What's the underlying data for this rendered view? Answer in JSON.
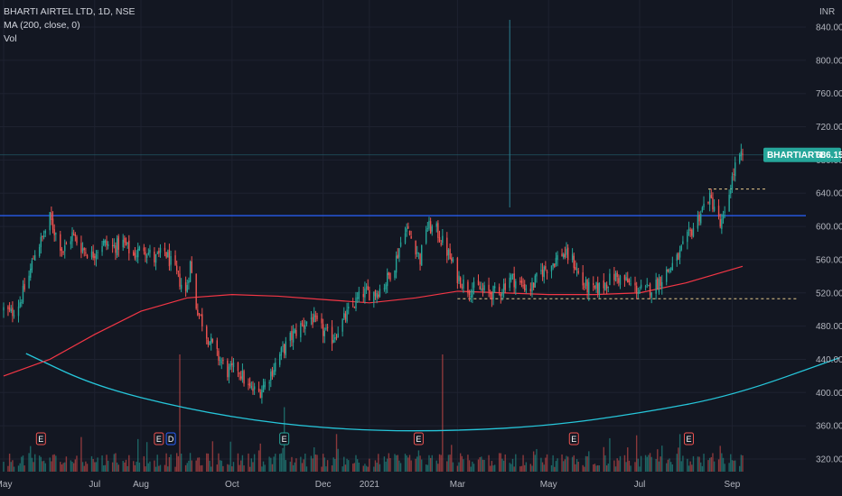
{
  "legend": {
    "title": "BHARTI AIRTEL LTD, 1D, NSE",
    "ma": "MA (200, close, 0)",
    "vol": "Vol"
  },
  "currency": "INR",
  "price_tag": {
    "symbol": "BHARTIARTL",
    "value": "686.15"
  },
  "colors": {
    "background": "#131722",
    "up": "#26a69a",
    "down": "#ef5350",
    "ma": "#f23645",
    "arc": "#26c6da",
    "level": "#2962ff",
    "dotted": "#e6c98c",
    "grid": "#1e2230",
    "tag": "#26a69a",
    "crosshair": "#2a7e8f"
  },
  "chart_data": {
    "type": "candlestick",
    "y_axis": {
      "ticks": [
        320,
        360,
        400,
        440,
        480,
        520,
        560,
        600,
        640,
        680,
        720,
        760,
        800,
        840
      ],
      "range": [
        305,
        865
      ]
    },
    "x_axis_labels": [
      "May",
      "Jul",
      "Aug",
      "Oct",
      "Dec",
      "2021",
      "Mar",
      "May",
      "Jul",
      "Sep"
    ],
    "x_axis_months": [
      "2020-05",
      "2020-07",
      "2020-08",
      "2020-10",
      "2020-12",
      "2021-01",
      "2021-03",
      "2021-05",
      "2021-07",
      "2021-09"
    ],
    "date_range": [
      "2020-05-01",
      "2021-09-08"
    ],
    "last_close": 686.15,
    "price_path": [
      [
        "2020-05-01",
        500
      ],
      [
        "2020-05-06",
        495
      ],
      [
        "2020-05-12",
        510
      ],
      [
        "2020-05-18",
        540
      ],
      [
        "2020-05-22",
        570
      ],
      [
        "2020-05-27",
        585
      ],
      [
        "2020-06-01",
        610
      ],
      [
        "2020-06-04",
        595
      ],
      [
        "2020-06-10",
        570
      ],
      [
        "2020-06-16",
        590
      ],
      [
        "2020-06-22",
        575
      ],
      [
        "2020-06-29",
        565
      ],
      [
        "2020-07-06",
        580
      ],
      [
        "2020-07-13",
        575
      ],
      [
        "2020-07-20",
        580
      ],
      [
        "2020-07-27",
        565
      ],
      [
        "2020-08-03",
        575
      ],
      [
        "2020-08-10",
        560
      ],
      [
        "2020-08-17",
        570
      ],
      [
        "2020-08-24",
        545
      ],
      [
        "2020-08-31",
        520
      ],
      [
        "2020-09-03",
        555
      ],
      [
        "2020-09-07",
        505
      ],
      [
        "2020-09-14",
        470
      ],
      [
        "2020-09-21",
        445
      ],
      [
        "2020-09-28",
        425
      ],
      [
        "2020-10-05",
        430
      ],
      [
        "2020-10-12",
        405
      ],
      [
        "2020-10-19",
        400
      ],
      [
        "2020-10-26",
        420
      ],
      [
        "2020-11-02",
        445
      ],
      [
        "2020-11-09",
        465
      ],
      [
        "2020-11-16",
        480
      ],
      [
        "2020-11-23",
        490
      ],
      [
        "2020-11-30",
        475
      ],
      [
        "2020-12-07",
        465
      ],
      [
        "2020-12-14",
        485
      ],
      [
        "2020-12-21",
        505
      ],
      [
        "2020-12-28",
        520
      ],
      [
        "2021-01-05",
        520
      ],
      [
        "2021-01-11",
        530
      ],
      [
        "2021-01-18",
        555
      ],
      [
        "2021-01-25",
        600
      ],
      [
        "2021-02-01",
        575
      ],
      [
        "2021-02-04",
        560
      ],
      [
        "2021-02-08",
        600
      ],
      [
        "2021-02-15",
        595
      ],
      [
        "2021-02-22",
        570
      ],
      [
        "2021-03-01",
        540
      ],
      [
        "2021-03-08",
        525
      ],
      [
        "2021-03-15",
        525
      ],
      [
        "2021-03-22",
        520
      ],
      [
        "2021-03-29",
        520
      ],
      [
        "2021-04-05",
        540
      ],
      [
        "2021-04-12",
        530
      ],
      [
        "2021-04-19",
        525
      ],
      [
        "2021-04-26",
        545
      ],
      [
        "2021-05-03",
        555
      ],
      [
        "2021-05-10",
        568
      ],
      [
        "2021-05-17",
        560
      ],
      [
        "2021-05-24",
        530
      ],
      [
        "2021-05-31",
        522
      ],
      [
        "2021-06-07",
        530
      ],
      [
        "2021-06-14",
        540
      ],
      [
        "2021-06-21",
        535
      ],
      [
        "2021-06-28",
        525
      ],
      [
        "2021-07-05",
        522
      ],
      [
        "2021-07-12",
        530
      ],
      [
        "2021-07-19",
        545
      ],
      [
        "2021-07-26",
        560
      ],
      [
        "2021-08-02",
        585
      ],
      [
        "2021-08-09",
        610
      ],
      [
        "2021-08-16",
        635
      ],
      [
        "2021-08-20",
        625
      ],
      [
        "2021-08-24",
        600
      ],
      [
        "2021-08-27",
        612
      ],
      [
        "2021-08-31",
        650
      ],
      [
        "2021-09-03",
        672
      ],
      [
        "2021-09-08",
        686.15
      ]
    ],
    "ma_path": [
      [
        "2020-05-01",
        420
      ],
      [
        "2020-06-01",
        440
      ],
      [
        "2020-07-01",
        470
      ],
      [
        "2020-08-01",
        498
      ],
      [
        "2020-09-01",
        514
      ],
      [
        "2020-10-01",
        518
      ],
      [
        "2020-11-01",
        516
      ],
      [
        "2020-12-01",
        512
      ],
      [
        "2021-01-01",
        508
      ],
      [
        "2021-02-01",
        514
      ],
      [
        "2021-03-01",
        522
      ],
      [
        "2021-04-01",
        520
      ],
      [
        "2021-05-01",
        518
      ],
      [
        "2021-06-01",
        518
      ],
      [
        "2021-07-01",
        520
      ],
      [
        "2021-08-01",
        532
      ],
      [
        "2021-09-08",
        552
      ]
    ],
    "arc_path": [
      [
        "2020-05-16",
        447
      ],
      [
        "2020-07-01",
        408
      ],
      [
        "2020-09-01",
        380
      ],
      [
        "2020-11-01",
        362
      ],
      [
        "2021-01-01",
        354
      ],
      [
        "2021-03-01",
        354
      ],
      [
        "2021-05-01",
        360
      ],
      [
        "2021-07-01",
        375
      ],
      [
        "2021-09-01",
        396
      ],
      [
        "2021-11-12",
        442
      ]
    ],
    "resistance_level": 613,
    "dotted_levels": [
      {
        "price": 645,
        "from": "2021-08-16",
        "to": "2021-09-24"
      },
      {
        "price": 513,
        "from": "2021-03-01",
        "to": "2021-10-15"
      }
    ],
    "crosshair_date": "2021-04-05",
    "crosshair_price_level": 686.15,
    "volume_spikes": [
      {
        "date": "2020-08-27",
        "value": 100,
        "dir": "down"
      },
      {
        "date": "2020-11-05",
        "value": 55,
        "dir": "up"
      },
      {
        "date": "2021-02-19",
        "value": 100,
        "dir": "down"
      },
      {
        "date": "2021-07-28",
        "value": 32,
        "dir": "up"
      },
      {
        "date": "2021-08-24",
        "value": 22,
        "dir": "down"
      }
    ],
    "event_markers": [
      {
        "label": "E",
        "date": "2020-05-26",
        "color": "#ef5350"
      },
      {
        "label": "E",
        "date": "2020-08-13",
        "color": "#ef5350"
      },
      {
        "label": "D",
        "date": "2020-08-21",
        "color": "#2962ff"
      },
      {
        "label": "E",
        "date": "2020-11-05",
        "color": "#26a69a"
      },
      {
        "label": "E",
        "date": "2021-02-03",
        "color": "#ef5350"
      },
      {
        "label": "E",
        "date": "2021-05-18",
        "color": "#ef5350"
      },
      {
        "label": "E",
        "date": "2021-08-03",
        "color": "#ef5350"
      }
    ]
  }
}
